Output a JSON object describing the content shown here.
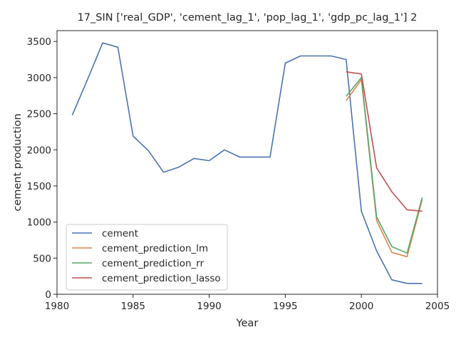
{
  "chart_data": {
    "type": "line",
    "title": "17_SIN ['real_GDP', 'cement_lag_1', 'pop_lag_1', 'gdp_pc_lag_1'] 2",
    "xlabel": "Year",
    "ylabel": "cement production",
    "xlim": [
      1980.0,
      2005.0
    ],
    "ylim": [
      0,
      3650
    ],
    "xticks": [
      1980,
      1985,
      1990,
      1995,
      2000,
      2005
    ],
    "yticks": [
      0,
      500,
      1000,
      1500,
      2000,
      2500,
      3000,
      3500
    ],
    "grid": false,
    "legend_position": "lower-left",
    "series": [
      {
        "name": "cement",
        "color": "#4c72b0",
        "x": [
          1981,
          1982,
          1983,
          1984,
          1985,
          1986,
          1987,
          1988,
          1989,
          1990,
          1991,
          1992,
          1993,
          1994,
          1995,
          1996,
          1997,
          1998,
          1999,
          2000,
          2001,
          2002,
          2003,
          2004
        ],
        "y": [
          2480,
          2970,
          3480,
          3420,
          2190,
          1990,
          1690,
          1760,
          1880,
          1850,
          2000,
          1900,
          1900,
          1900,
          3200,
          3300,
          3300,
          3300,
          3250,
          1150,
          600,
          200,
          150,
          150
        ]
      },
      {
        "name": "cement_prediction_lm",
        "color": "#dd8452",
        "x": [
          1999,
          2000,
          2001,
          2002,
          2003,
          2004
        ],
        "y": [
          2680,
          2970,
          1020,
          580,
          520,
          1310
        ]
      },
      {
        "name": "cement_prediction_rr",
        "color": "#55a868",
        "x": [
          1999,
          2000,
          2001,
          2002,
          2003,
          2004
        ],
        "y": [
          2740,
          3000,
          1070,
          660,
          570,
          1340
        ]
      },
      {
        "name": "cement_prediction_lasso",
        "color": "#c44e52",
        "x": [
          1999,
          2000,
          2001,
          2002,
          2003,
          2004
        ],
        "y": [
          3080,
          3050,
          1750,
          1420,
          1170,
          1150
        ]
      }
    ]
  }
}
